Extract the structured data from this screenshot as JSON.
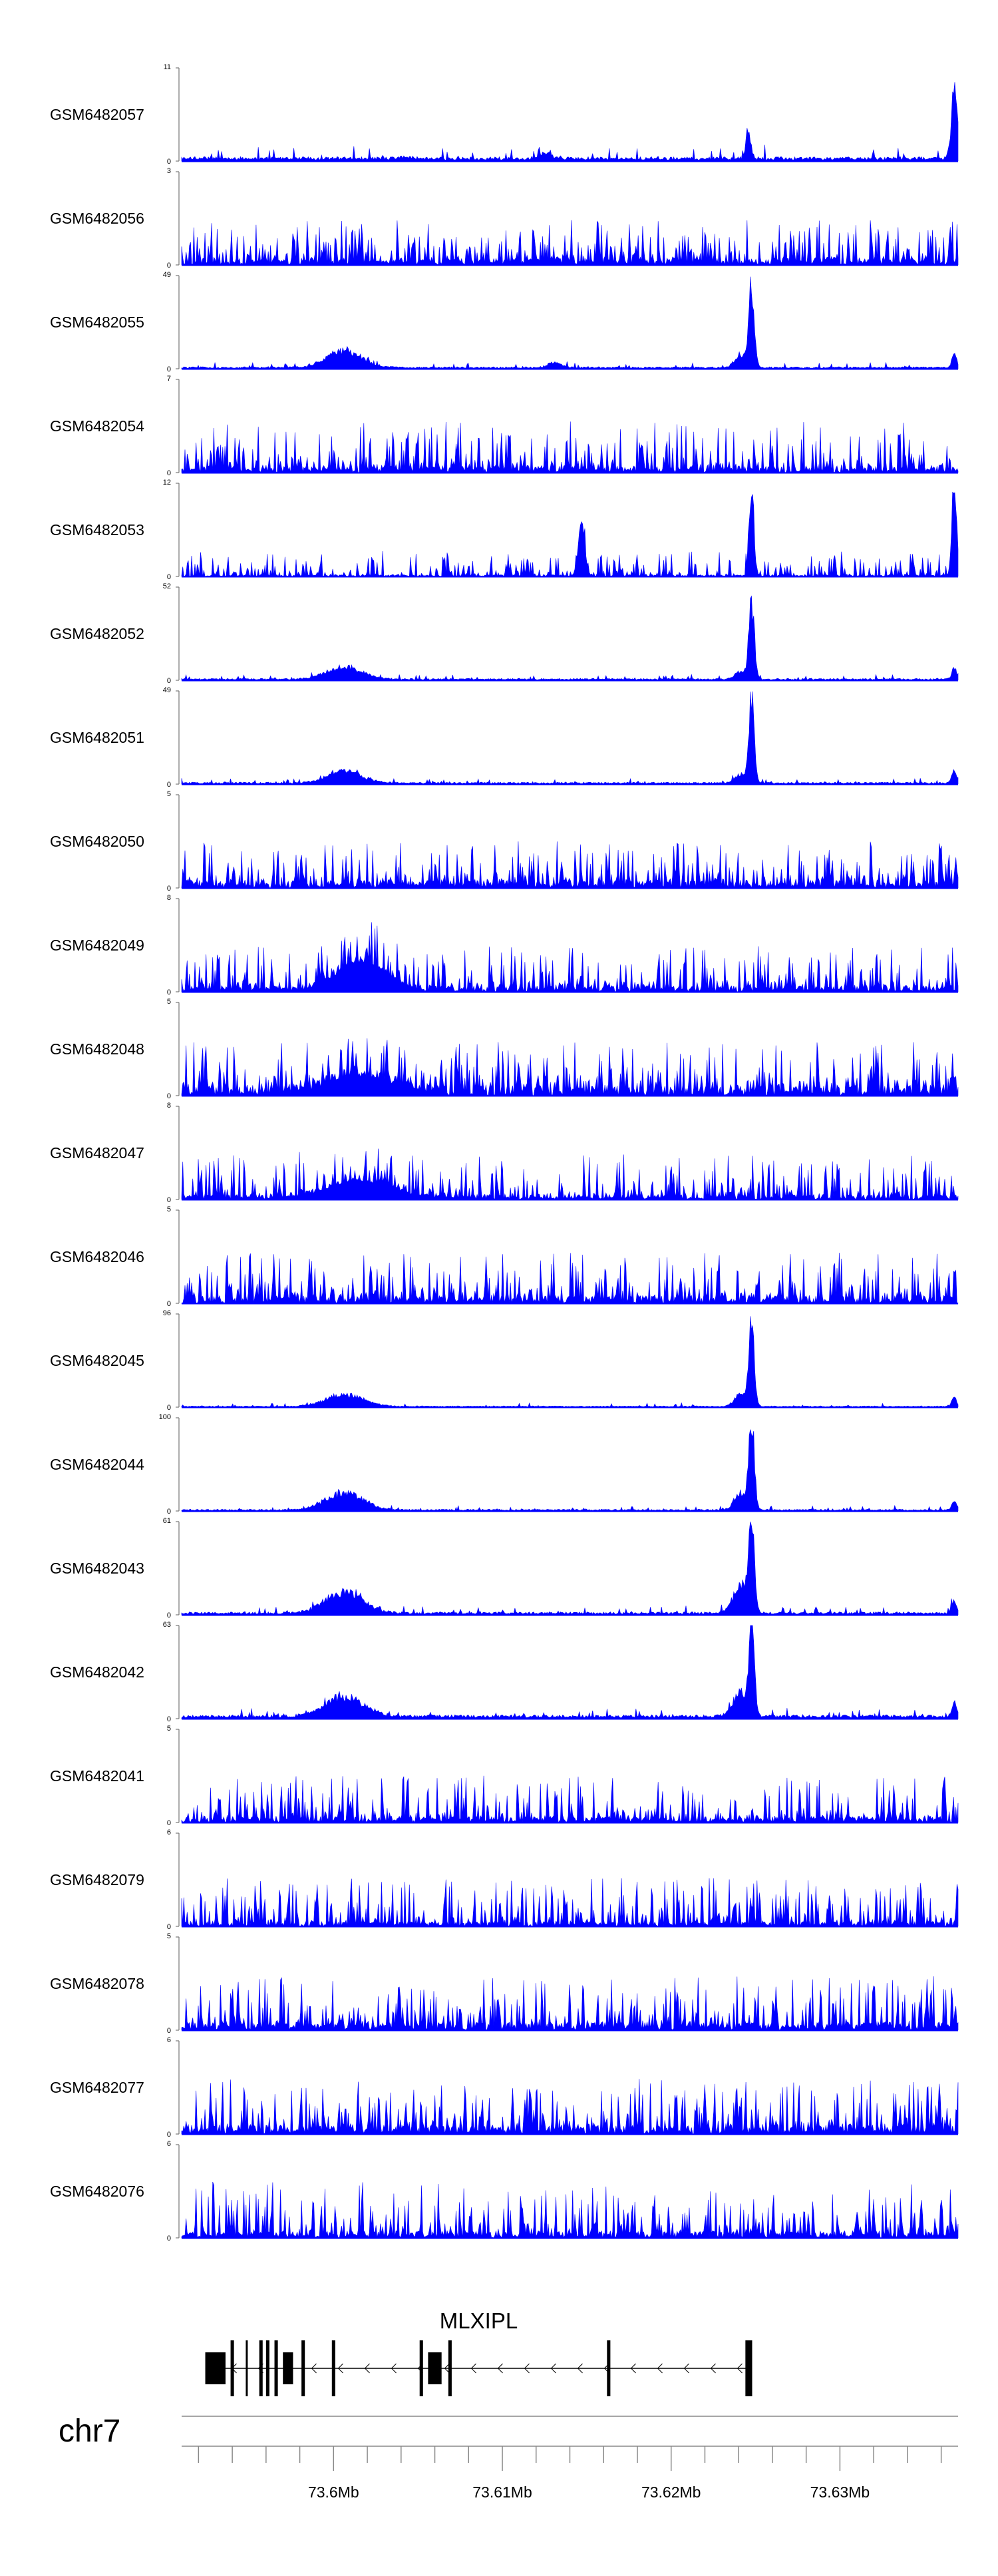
{
  "chart_data": {
    "type": "area",
    "color": "#0000ff",
    "chromosome": "chr7",
    "xlim": [
      73.591,
      73.637
    ],
    "x_unit": "Mb",
    "x_ticks": [
      73.6,
      73.61,
      73.62,
      73.63
    ],
    "x_tick_labels": [
      "73.6Mb",
      "73.61Mb",
      "73.62Mb",
      "73.63Mb"
    ],
    "gene": {
      "name": "MLXIPL",
      "strand": "-",
      "start": 73.5924,
      "end": 73.6248,
      "exons": [
        [
          73.5924,
          73.5936
        ],
        [
          73.5939,
          73.5941
        ],
        [
          73.5948,
          73.5949
        ],
        [
          73.5956,
          73.5958
        ],
        [
          73.596,
          73.5962
        ],
        [
          73.5965,
          73.5967
        ],
        [
          73.597,
          73.5976
        ],
        [
          73.5981,
          73.5983
        ],
        [
          73.5999,
          73.6001
        ],
        [
          73.6051,
          73.6053
        ],
        [
          73.6056,
          73.6064
        ],
        [
          73.6068,
          73.607
        ],
        [
          73.6162,
          73.6164
        ],
        [
          73.6244,
          73.6248
        ]
      ]
    },
    "series": [
      {
        "name": "GSM6482057",
        "ymax": 11,
        "bg": 0.4,
        "noise": 1.4,
        "spiky": false,
        "peaks": [
          [
            0.47,
            0.7,
            0.007
          ],
          [
            0.29,
            0.15,
            0.008
          ],
          [
            0.73,
            3.6,
            0.003
          ],
          [
            0.995,
            7.5,
            0.004
          ]
        ]
      },
      {
        "name": "GSM6482056",
        "ymax": 3,
        "bg": 0.2,
        "noise": 0.9,
        "spiky": true,
        "peaks": []
      },
      {
        "name": "GSM6482055",
        "ymax": 49,
        "bg": 0.8,
        "noise": 2.5,
        "spiky": false,
        "peaks": [
          [
            0.21,
            9,
            0.022
          ],
          [
            0.48,
            3,
            0.008
          ],
          [
            0.734,
            44,
            0.0035
          ],
          [
            0.72,
            6,
            0.008
          ],
          [
            0.995,
            7,
            0.003
          ]
        ]
      },
      {
        "name": "GSM6482054",
        "ymax": 7,
        "bg": 0.5,
        "noise": 2.4,
        "spiky": true,
        "peaks": []
      },
      {
        "name": "GSM6482053",
        "ymax": 12,
        "bg": 0.2,
        "noise": 2.2,
        "spiky": true,
        "peaks": [
          [
            0.515,
            7,
            0.004
          ],
          [
            0.734,
            10,
            0.003
          ],
          [
            0.995,
            11,
            0.003
          ]
        ]
      },
      {
        "name": "GSM6482052",
        "ymax": 52,
        "bg": 0.8,
        "noise": 2.5,
        "spiky": false,
        "peaks": [
          [
            0.21,
            7,
            0.022
          ],
          [
            0.734,
            45,
            0.0035
          ],
          [
            0.72,
            4,
            0.008
          ],
          [
            0.995,
            6,
            0.003
          ]
        ]
      },
      {
        "name": "GSM6482051",
        "ymax": 49,
        "bg": 0.8,
        "noise": 2.3,
        "spiky": false,
        "peaks": [
          [
            0.21,
            6,
            0.022
          ],
          [
            0.734,
            42,
            0.0035
          ],
          [
            0.72,
            4,
            0.008
          ],
          [
            0.995,
            7,
            0.003
          ]
        ]
      },
      {
        "name": "GSM6482050",
        "ymax": 5,
        "bg": 0.4,
        "noise": 1.5,
        "spiky": true,
        "peaks": []
      },
      {
        "name": "GSM6482049",
        "ymax": 8,
        "bg": 0.5,
        "noise": 2.5,
        "spiky": true,
        "peaks": [
          [
            0.23,
            2.5,
            0.03
          ]
        ]
      },
      {
        "name": "GSM6482048",
        "ymax": 5,
        "bg": 0.5,
        "noise": 1.7,
        "spiky": true,
        "peaks": [
          [
            0.23,
            1.0,
            0.04
          ]
        ]
      },
      {
        "name": "GSM6482047",
        "ymax": 8,
        "bg": 0.4,
        "noise": 2.5,
        "spiky": true,
        "peaks": [
          [
            0.23,
            1.5,
            0.04
          ]
        ]
      },
      {
        "name": "GSM6482046",
        "ymax": 5,
        "bg": 0.4,
        "noise": 1.7,
        "spiky": true,
        "peaks": []
      },
      {
        "name": "GSM6482045",
        "ymax": 96,
        "bg": 1.0,
        "noise": 3.5,
        "spiky": false,
        "peaks": [
          [
            0.21,
            12,
            0.024
          ],
          [
            0.734,
            85,
            0.0035
          ],
          [
            0.72,
            12,
            0.008
          ],
          [
            0.995,
            10,
            0.003
          ]
        ]
      },
      {
        "name": "GSM6482044",
        "ymax": 100,
        "bg": 1.5,
        "noise": 4.0,
        "spiky": false,
        "peaks": [
          [
            0.21,
            18,
            0.024
          ],
          [
            0.734,
            90,
            0.0035
          ],
          [
            0.72,
            18,
            0.008
          ],
          [
            0.995,
            10,
            0.003
          ]
        ]
      },
      {
        "name": "GSM6482043",
        "ymax": 61,
        "bg": 1.5,
        "noise": 5.0,
        "spiky": false,
        "peaks": [
          [
            0.21,
            14,
            0.024
          ],
          [
            0.734,
            55,
            0.0035
          ],
          [
            0.72,
            18,
            0.01
          ],
          [
            0.995,
            9,
            0.003
          ]
        ]
      },
      {
        "name": "GSM6482042",
        "ymax": 63,
        "bg": 2.0,
        "noise": 5.0,
        "spiky": false,
        "peaks": [
          [
            0.21,
            14,
            0.024
          ],
          [
            0.734,
            57,
            0.0035
          ],
          [
            0.72,
            16,
            0.01
          ],
          [
            0.995,
            8,
            0.003
          ]
        ]
      },
      {
        "name": "GSM6482041",
        "ymax": 5,
        "bg": 0.3,
        "noise": 1.6,
        "spiky": true,
        "peaks": []
      },
      {
        "name": "GSM6482079",
        "ymax": 6,
        "bg": 0.3,
        "noise": 2.0,
        "spiky": true,
        "peaks": []
      },
      {
        "name": "GSM6482078",
        "ymax": 5,
        "bg": 0.4,
        "noise": 1.8,
        "spiky": true,
        "peaks": []
      },
      {
        "name": "GSM6482077",
        "ymax": 6,
        "bg": 0.5,
        "noise": 2.2,
        "spiky": true,
        "peaks": []
      },
      {
        "name": "GSM6482076",
        "ymax": 6,
        "bg": 0.4,
        "noise": 2.3,
        "spiky": true,
        "peaks": []
      }
    ]
  }
}
